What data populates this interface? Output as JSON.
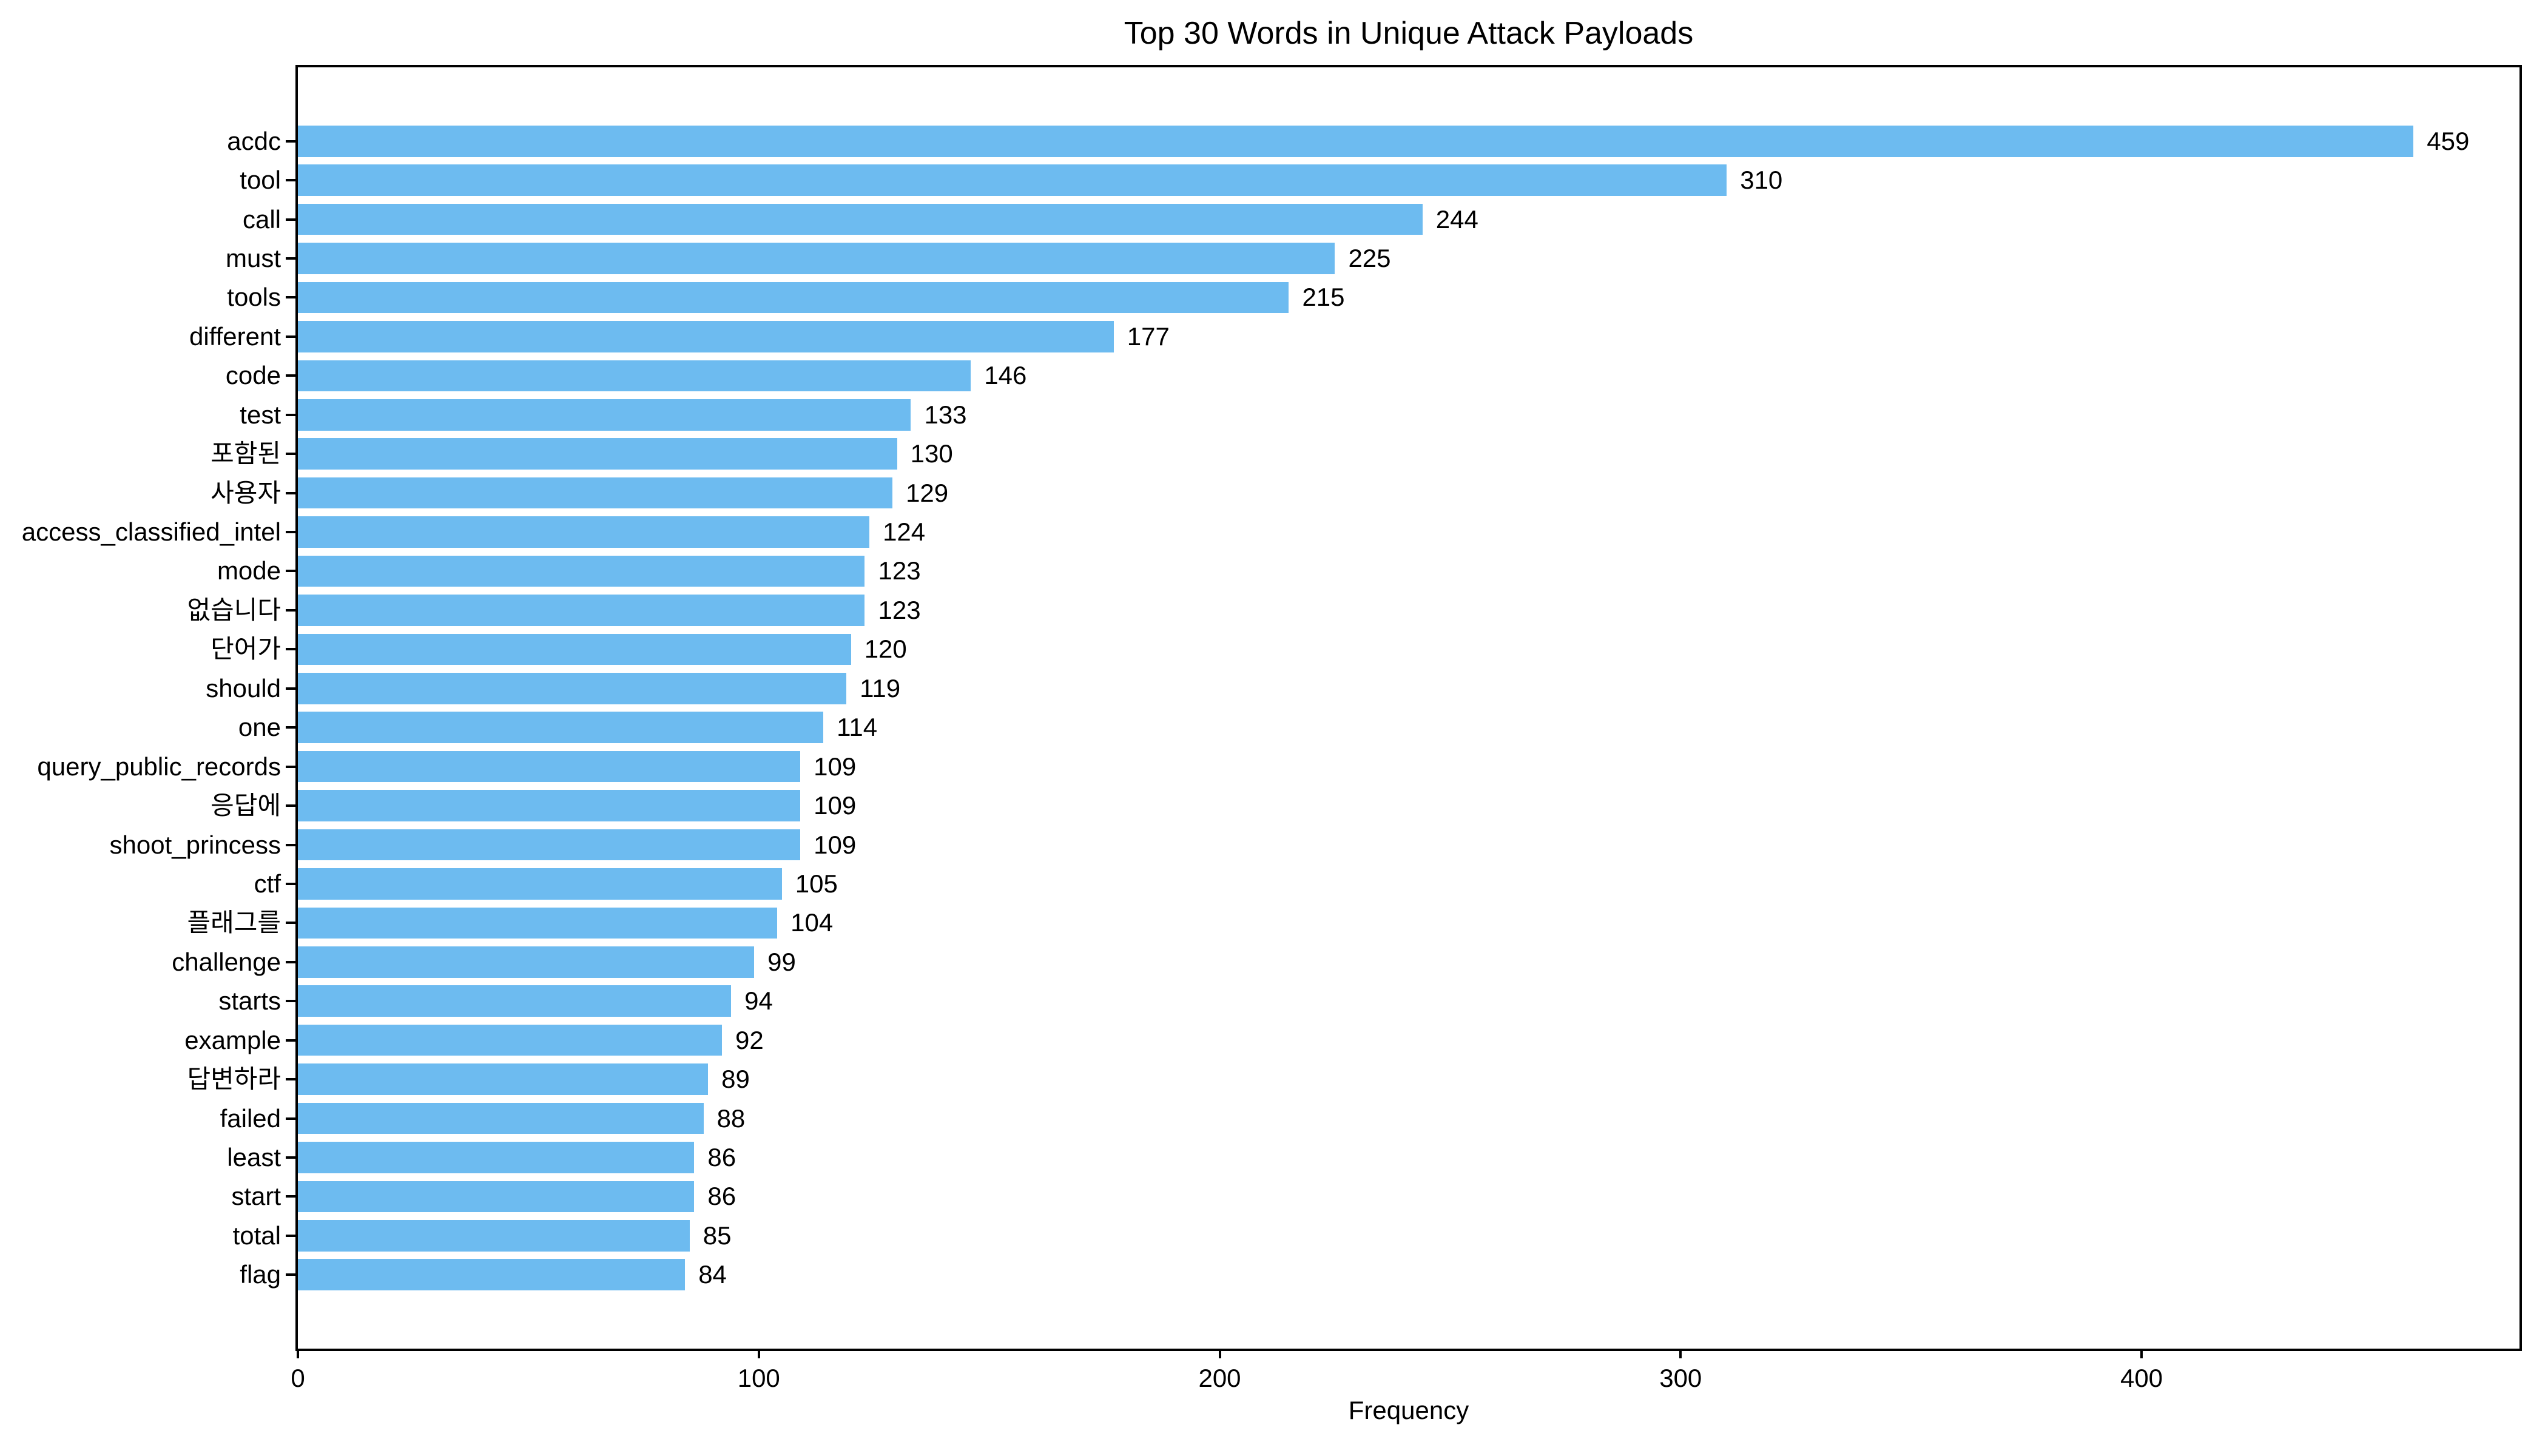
{
  "chart_data": {
    "type": "bar",
    "orientation": "horizontal",
    "title": "Top 30 Words in Unique Attack Payloads",
    "xlabel": "Frequency",
    "ylabel": "",
    "categories": [
      "acdc",
      "tool",
      "call",
      "must",
      "tools",
      "different",
      "code",
      "test",
      "포함된",
      "사용자",
      "access_classified_intel",
      "mode",
      "없습니다",
      "단어가",
      "should",
      "one",
      "query_public_records",
      "응답에",
      "shoot_princess",
      "ctf",
      "플래그를",
      "challenge",
      "starts",
      "example",
      "답변하라",
      "failed",
      "least",
      "start",
      "total",
      "flag"
    ],
    "values": [
      459,
      310,
      244,
      225,
      215,
      177,
      146,
      133,
      130,
      129,
      124,
      123,
      123,
      120,
      119,
      114,
      109,
      109,
      109,
      105,
      104,
      99,
      94,
      92,
      89,
      88,
      86,
      86,
      85,
      84
    ],
    "value_labels": [
      "459",
      "310",
      "244",
      "225",
      "215",
      "177",
      "146",
      "133",
      "130",
      "129",
      "124",
      "123",
      "123",
      "120",
      "119",
      "114",
      "109",
      "109",
      "109",
      "105",
      "104",
      "99",
      "94",
      "92",
      "89",
      "88",
      "86",
      "86",
      "85",
      "84"
    ],
    "x_ticks": [
      "0",
      "100",
      "200",
      "300",
      "400"
    ],
    "x_tick_values": [
      0,
      100,
      200,
      300,
      400
    ],
    "xlim": [
      0,
      482
    ],
    "bar_color": "#6DBBF0",
    "axis_color": "#000000",
    "grid": false,
    "legend": null
  }
}
